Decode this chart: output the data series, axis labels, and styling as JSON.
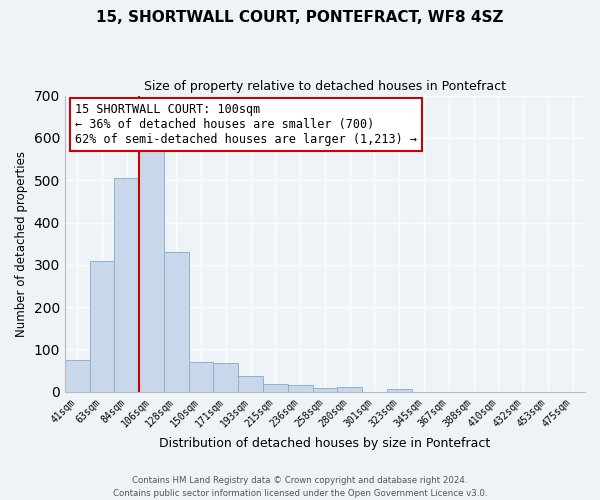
{
  "title": "15, SHORTWALL COURT, PONTEFRACT, WF8 4SZ",
  "subtitle": "Size of property relative to detached houses in Pontefract",
  "xlabel": "Distribution of detached houses by size in Pontefract",
  "ylabel": "Number of detached properties",
  "bar_labels": [
    "41sqm",
    "63sqm",
    "84sqm",
    "106sqm",
    "128sqm",
    "150sqm",
    "171sqm",
    "193sqm",
    "215sqm",
    "236sqm",
    "258sqm",
    "280sqm",
    "301sqm",
    "323sqm",
    "345sqm",
    "367sqm",
    "388sqm",
    "410sqm",
    "432sqm",
    "453sqm",
    "475sqm"
  ],
  "bar_values": [
    75,
    310,
    505,
    575,
    330,
    70,
    68,
    38,
    18,
    15,
    10,
    12,
    0,
    7,
    0,
    0,
    0,
    0,
    0,
    0,
    0
  ],
  "bar_color": "#c8d8ea",
  "bar_edge_color": "#8ab4cc",
  "property_line_color": "#cc0000",
  "ylim": [
    0,
    700
  ],
  "yticks": [
    0,
    100,
    200,
    300,
    400,
    500,
    600,
    700
  ],
  "annotation_text_line1": "15 SHORTWALL COURT: 100sqm",
  "annotation_text_line2": "← 36% of detached houses are smaller (700)",
  "annotation_text_line3": "62% of semi-detached houses are larger (1,213) →",
  "footer_line1": "Contains HM Land Registry data © Crown copyright and database right 2024.",
  "footer_line2": "Contains public sector information licensed under the Open Government Licence v3.0.",
  "background_color": "#eef3f8",
  "plot_bg_color": "#eef3f8",
  "grid_color": "#ffffff"
}
